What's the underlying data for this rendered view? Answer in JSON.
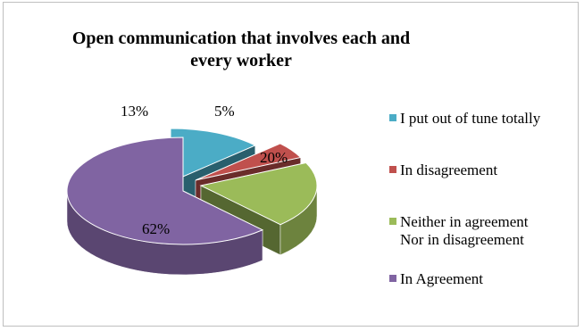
{
  "chart_data": {
    "type": "pie",
    "title": "Open communication that involves each and every worker",
    "three_d": true,
    "exploded": true,
    "slices": [
      {
        "label": "I put out of tune totally",
        "value": 13,
        "display": "13%",
        "color": "#4bacc6"
      },
      {
        "label": "In disagreement",
        "value": 5,
        "display": "5%",
        "color": "#c0504d"
      },
      {
        "label": "Neither in agreement\nNor in disagreement",
        "value": 20,
        "display": "20%",
        "color": "#9bbb59"
      },
      {
        "label": "In Agreement",
        "value": 62,
        "display": "62%",
        "color": "#8064a2"
      }
    ],
    "legend_order": [
      0,
      1,
      2,
      3
    ],
    "legend_placement": "right"
  }
}
